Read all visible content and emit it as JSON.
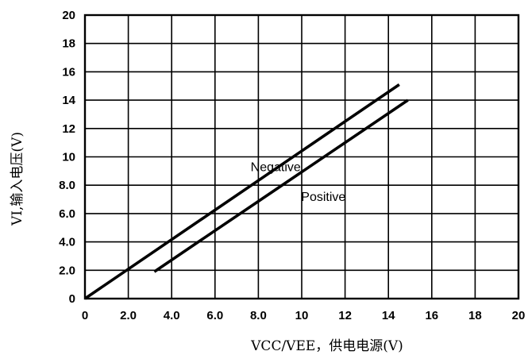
{
  "chart_data": {
    "type": "line",
    "title": "",
    "xlabel": "VCC/VEE，供电电源(V)",
    "ylabel": "VI,输入电压(V)",
    "xlim": [
      0,
      20
    ],
    "ylim": [
      0,
      20
    ],
    "x_ticks": [
      "0",
      "2.0",
      "4.0",
      "6.0",
      "8.0",
      "10",
      "12",
      "14",
      "16",
      "18",
      "20"
    ],
    "y_ticks": [
      "0",
      "2.0",
      "4.0",
      "6.0",
      "8.0",
      "10",
      "12",
      "14",
      "16",
      "18",
      "20"
    ],
    "x_tick_values": [
      0,
      2,
      4,
      6,
      8,
      10,
      12,
      14,
      16,
      18,
      20
    ],
    "y_tick_values": [
      0,
      2,
      4,
      6,
      8,
      10,
      12,
      14,
      16,
      18,
      20
    ],
    "grid": true,
    "legend": "none",
    "series": [
      {
        "name": "Negative",
        "x": [
          0,
          14.5
        ],
        "y": [
          0,
          15.1
        ],
        "label_at": [
          8.8,
          9.0
        ]
      },
      {
        "name": "Positive",
        "x": [
          3.2,
          14.9
        ],
        "y": [
          1.9,
          14.0
        ],
        "label_at": [
          11.0,
          6.9
        ]
      }
    ],
    "colors": {
      "line": "#000000",
      "grid": "#000000",
      "frame": "#000000"
    }
  }
}
